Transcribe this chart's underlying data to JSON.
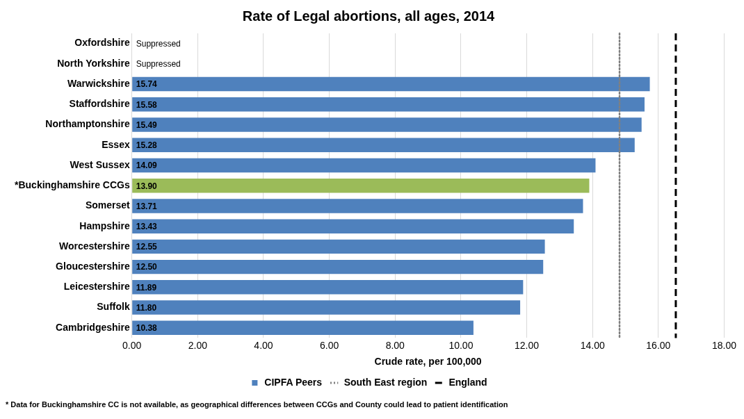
{
  "chart_data": {
    "type": "bar",
    "orientation": "horizontal",
    "title": "Rate of Legal abortions, all ages, 2014",
    "xlabel": "Crude rate, per 100,000",
    "categories": [
      "Oxfordshire",
      "North Yorkshire",
      "Warwickshire",
      "Staffordshire",
      "Northamptonshire",
      "Essex",
      "West Sussex",
      "*Buckinghamshire CCGs",
      "Somerset",
      "Hampshire",
      "Worcestershire",
      "Gloucestershire",
      "Leicestershire",
      "Suffolk",
      "Cambridgeshire"
    ],
    "series": [
      {
        "name": "CIPFA Peers",
        "color": "#4f81bd",
        "colors": [
          "#4f81bd",
          "#4f81bd",
          "#4f81bd",
          "#4f81bd",
          "#4f81bd",
          "#4f81bd",
          "#4f81bd",
          "#9bbb59",
          "#4f81bd",
          "#4f81bd",
          "#4f81bd",
          "#4f81bd",
          "#4f81bd",
          "#4f81bd",
          "#4f81bd"
        ],
        "values": [
          null,
          null,
          15.74,
          15.58,
          15.49,
          15.28,
          14.09,
          13.9,
          13.71,
          13.43,
          12.55,
          12.5,
          11.89,
          11.8,
          10.38
        ],
        "value_labels": [
          "Suppressed",
          "Suppressed",
          "15.74",
          "15.58",
          "15.49",
          "15.28",
          "14.09",
          "13.90",
          "13.71",
          "13.43",
          "12.55",
          "12.50",
          "11.89",
          "11.80",
          "10.38"
        ]
      }
    ],
    "ref_lines": [
      {
        "axis": "x",
        "value": 14.82,
        "label": "South East region",
        "color": "#808080",
        "line_style": "dotted"
      },
      {
        "axis": "x",
        "value": 16.53,
        "label": "England",
        "color": "#000000",
        "line_style": "dashed"
      }
    ],
    "xlim": [
      0,
      18
    ],
    "xticks": [
      {
        "value": 0,
        "label": "0.00"
      },
      {
        "value": 2,
        "label": "2.00"
      },
      {
        "value": 4,
        "label": "4.00"
      },
      {
        "value": 6,
        "label": "6.00"
      },
      {
        "value": 8,
        "label": "8.00"
      },
      {
        "value": 10,
        "label": "10.00"
      },
      {
        "value": 12,
        "label": "12.00"
      },
      {
        "value": 14,
        "label": "14.00"
      },
      {
        "value": 16,
        "label": "16.00"
      },
      {
        "value": 18,
        "label": "18.00"
      }
    ],
    "grid": "x",
    "legend": "bottom",
    "annotations": [
      "* Data for Buckinghamshire CC is not available, as geographical differences between CCGs and County could lead to patient identification"
    ]
  }
}
